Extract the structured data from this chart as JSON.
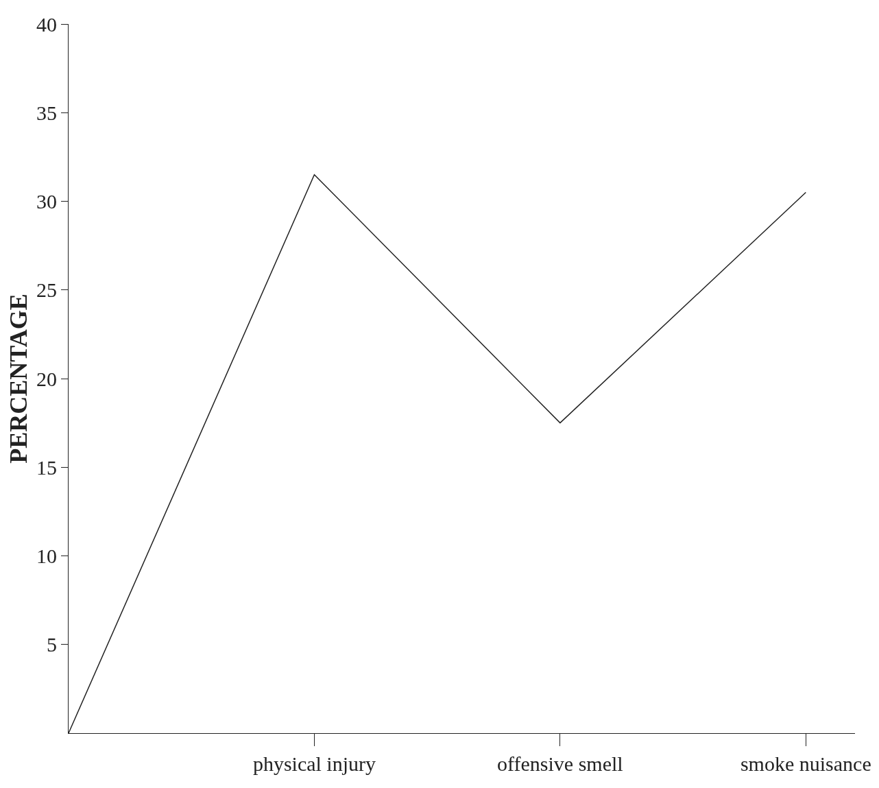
{
  "chart_data": {
    "type": "line",
    "ylabel": "PERCENTAGE",
    "categories": [
      null,
      "physical injury",
      "offensive smell",
      "smoke nuisance"
    ],
    "series": [
      {
        "color": "#222222",
        "values": [
          0,
          31.5,
          17.5,
          30.5
        ]
      }
    ],
    "ylim": [
      0,
      40
    ],
    "yticks": [
      5,
      10,
      15,
      20,
      25,
      30,
      35,
      40
    ],
    "marker": "none",
    "line_style": "solid"
  }
}
